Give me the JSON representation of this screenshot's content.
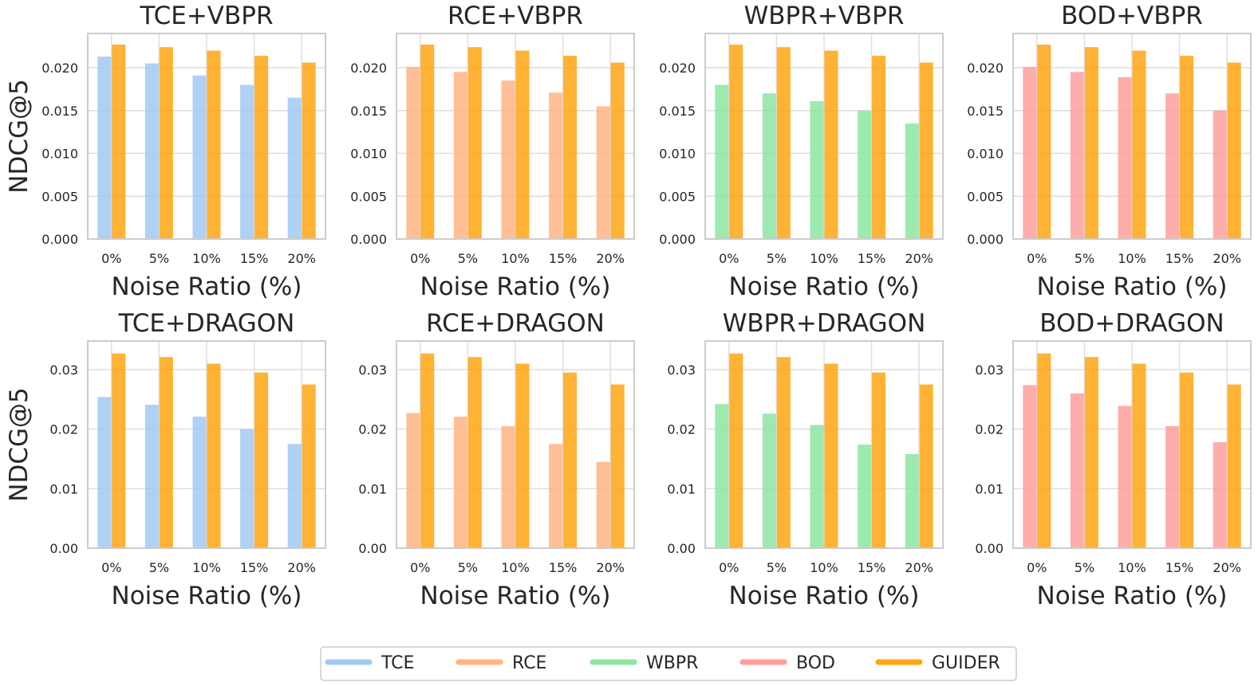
{
  "chart_data": [
    {
      "type": "bar",
      "title": "TCE+VBPR",
      "xlabel": "Noise Ratio (%)",
      "ylabel": "NDCG@5",
      "categories": [
        "0%",
        "5%",
        "10%",
        "15%",
        "20%"
      ],
      "ylim": [
        0,
        0.024
      ],
      "yticks": [
        "0.000",
        "0.005",
        "0.010",
        "0.015",
        "0.020"
      ],
      "grid": true,
      "series": [
        {
          "name": "TCE",
          "color": "#a1c9f4",
          "values": [
            0.0213,
            0.0205,
            0.0191,
            0.018,
            0.0165
          ]
        },
        {
          "name": "GUIDER",
          "color": "#ffa510",
          "values": [
            0.0227,
            0.0224,
            0.022,
            0.0214,
            0.0206
          ]
        }
      ]
    },
    {
      "type": "bar",
      "title": "RCE+VBPR",
      "xlabel": "Noise Ratio (%)",
      "ylabel": "",
      "categories": [
        "0%",
        "5%",
        "10%",
        "15%",
        "20%"
      ],
      "ylim": [
        0,
        0.024
      ],
      "yticks": [
        "0.000",
        "0.005",
        "0.010",
        "0.015",
        "0.020"
      ],
      "grid": true,
      "series": [
        {
          "name": "RCE",
          "color": "#ffb482",
          "values": [
            0.0201,
            0.0195,
            0.0185,
            0.0171,
            0.0155
          ]
        },
        {
          "name": "GUIDER",
          "color": "#ffa510",
          "values": [
            0.0227,
            0.0224,
            0.022,
            0.0214,
            0.0206
          ]
        }
      ]
    },
    {
      "type": "bar",
      "title": "WBPR+VBPR",
      "xlabel": "Noise Ratio (%)",
      "ylabel": "",
      "categories": [
        "0%",
        "5%",
        "10%",
        "15%",
        "20%"
      ],
      "ylim": [
        0,
        0.024
      ],
      "yticks": [
        "0.000",
        "0.005",
        "0.010",
        "0.015",
        "0.020"
      ],
      "grid": true,
      "series": [
        {
          "name": "WBPR",
          "color": "#8de5a1",
          "values": [
            0.018,
            0.017,
            0.0161,
            0.015,
            0.0135
          ]
        },
        {
          "name": "GUIDER",
          "color": "#ffa510",
          "values": [
            0.0227,
            0.0224,
            0.022,
            0.0214,
            0.0206
          ]
        }
      ]
    },
    {
      "type": "bar",
      "title": "BOD+VBPR",
      "xlabel": "Noise Ratio (%)",
      "ylabel": "",
      "categories": [
        "0%",
        "5%",
        "10%",
        "15%",
        "20%"
      ],
      "ylim": [
        0,
        0.024
      ],
      "yticks": [
        "0.000",
        "0.005",
        "0.010",
        "0.015",
        "0.020"
      ],
      "grid": true,
      "series": [
        {
          "name": "BOD",
          "color": "#ff9f9b",
          "values": [
            0.0201,
            0.0195,
            0.0189,
            0.017,
            0.015
          ]
        },
        {
          "name": "GUIDER",
          "color": "#ffa510",
          "values": [
            0.0227,
            0.0224,
            0.022,
            0.0214,
            0.0206
          ]
        }
      ]
    },
    {
      "type": "bar",
      "title": "TCE+DRAGON",
      "xlabel": "Noise Ratio (%)",
      "ylabel": "NDCG@5",
      "categories": [
        "0%",
        "5%",
        "10%",
        "15%",
        "20%"
      ],
      "ylim": [
        0,
        0.0348
      ],
      "yticks": [
        "0.00",
        "0.01",
        "0.02",
        "0.03"
      ],
      "grid": true,
      "series": [
        {
          "name": "TCE",
          "color": "#a1c9f4",
          "values": [
            0.0254,
            0.0241,
            0.0221,
            0.02,
            0.0175
          ]
        },
        {
          "name": "GUIDER",
          "color": "#ffa510",
          "values": [
            0.0327,
            0.0321,
            0.031,
            0.0295,
            0.0275
          ]
        }
      ]
    },
    {
      "type": "bar",
      "title": "RCE+DRAGON",
      "xlabel": "Noise Ratio (%)",
      "ylabel": "",
      "categories": [
        "0%",
        "5%",
        "10%",
        "15%",
        "20%"
      ],
      "ylim": [
        0,
        0.0348
      ],
      "yticks": [
        "0.00",
        "0.01",
        "0.02",
        "0.03"
      ],
      "grid": true,
      "series": [
        {
          "name": "RCE",
          "color": "#ffb482",
          "values": [
            0.0227,
            0.0221,
            0.0205,
            0.0175,
            0.0145
          ]
        },
        {
          "name": "GUIDER",
          "color": "#ffa510",
          "values": [
            0.0327,
            0.0321,
            0.031,
            0.0295,
            0.0275
          ]
        }
      ]
    },
    {
      "type": "bar",
      "title": "WBPR+DRAGON",
      "xlabel": "Noise Ratio (%)",
      "ylabel": "",
      "categories": [
        "0%",
        "5%",
        "10%",
        "15%",
        "20%"
      ],
      "ylim": [
        0,
        0.0348
      ],
      "yticks": [
        "0.00",
        "0.01",
        "0.02",
        "0.03"
      ],
      "grid": true,
      "series": [
        {
          "name": "WBPR",
          "color": "#8de5a1",
          "values": [
            0.0242,
            0.0226,
            0.0207,
            0.0174,
            0.0158
          ]
        },
        {
          "name": "GUIDER",
          "color": "#ffa510",
          "values": [
            0.0327,
            0.0321,
            0.031,
            0.0295,
            0.0275
          ]
        }
      ]
    },
    {
      "type": "bar",
      "title": "BOD+DRAGON",
      "xlabel": "Noise Ratio (%)",
      "ylabel": "",
      "categories": [
        "0%",
        "5%",
        "10%",
        "15%",
        "20%"
      ],
      "ylim": [
        0,
        0.0348
      ],
      "yticks": [
        "0.00",
        "0.01",
        "0.02",
        "0.03"
      ],
      "grid": true,
      "series": [
        {
          "name": "BOD",
          "color": "#ff9f9b",
          "values": [
            0.0274,
            0.026,
            0.0239,
            0.0205,
            0.0178
          ]
        },
        {
          "name": "GUIDER",
          "color": "#ffa510",
          "values": [
            0.0327,
            0.0321,
            0.031,
            0.0295,
            0.0275
          ]
        }
      ]
    }
  ],
  "legend": {
    "placement": "bottom-center",
    "entries": [
      {
        "label": "TCE",
        "color": "#a1c9f4"
      },
      {
        "label": "RCE",
        "color": "#ffb482"
      },
      {
        "label": "WBPR",
        "color": "#8de5a1"
      },
      {
        "label": "BOD",
        "color": "#ff9f9b"
      },
      {
        "label": "GUIDER",
        "color": "#ffa510"
      }
    ]
  }
}
